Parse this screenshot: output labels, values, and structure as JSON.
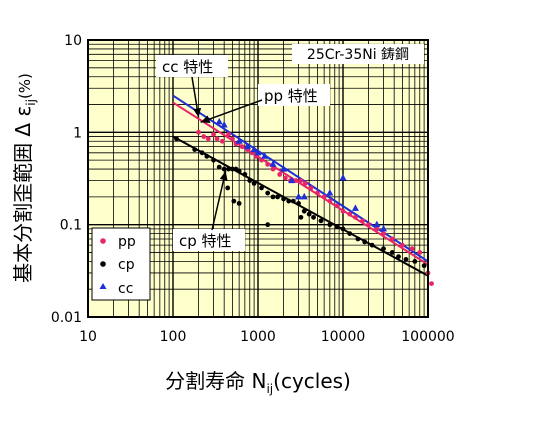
{
  "chart_data": {
    "type": "scatter",
    "title": "",
    "material_label": "25Cr-35Ni 鋳鋼",
    "xlabel_main": "分割寿命 N",
    "xlabel_sub": "ij",
    "xlabel_tail": "(cycles)",
    "ylabel_main": "基本分割歪範囲  Δ ε",
    "ylabel_sub": "ij",
    "ylabel_tail": "(%)",
    "x_scale": "log",
    "y_scale": "log",
    "xlim": [
      10,
      100000
    ],
    "ylim": [
      0.01,
      10
    ],
    "x_ticks": [
      {
        "value": 10,
        "label": "10"
      },
      {
        "value": 100,
        "label": "100"
      },
      {
        "value": 1000,
        "label": "1000"
      },
      {
        "value": 10000,
        "label": "10000"
      },
      {
        "value": 100000,
        "label": "100000"
      }
    ],
    "y_ticks": [
      {
        "value": 0.01,
        "label": "0.01"
      },
      {
        "value": 0.1,
        "label": "0.1"
      },
      {
        "value": 1,
        "label": "1"
      },
      {
        "value": 10,
        "label": "10"
      }
    ],
    "grid": true,
    "legend_position": "bottom-left",
    "series": [
      {
        "name": "pp",
        "color": "#e8246a",
        "marker": "circle",
        "points": [
          [
            200,
            1.0
          ],
          [
            230,
            0.9
          ],
          [
            260,
            0.85
          ],
          [
            300,
            0.95
          ],
          [
            330,
            0.85
          ],
          [
            380,
            0.8
          ],
          [
            450,
            0.95
          ],
          [
            500,
            0.85
          ],
          [
            550,
            0.75
          ],
          [
            650,
            0.7
          ],
          [
            750,
            0.65
          ],
          [
            850,
            0.6
          ],
          [
            950,
            0.55
          ],
          [
            1100,
            0.5
          ],
          [
            1300,
            0.45
          ],
          [
            1500,
            0.4
          ],
          [
            1800,
            0.35
          ],
          [
            2100,
            0.32
          ],
          [
            2400,
            0.3
          ],
          [
            2800,
            0.3
          ],
          [
            3200,
            0.3
          ],
          [
            3600,
            0.28
          ],
          [
            4200,
            0.25
          ],
          [
            5000,
            0.22
          ],
          [
            6000,
            0.2
          ],
          [
            7000,
            0.18
          ],
          [
            8500,
            0.16
          ],
          [
            10000,
            0.14
          ],
          [
            12000,
            0.13
          ],
          [
            14000,
            0.12
          ],
          [
            17000,
            0.11
          ],
          [
            20000,
            0.1
          ],
          [
            25000,
            0.09
          ],
          [
            30000,
            0.08
          ],
          [
            38000,
            0.07
          ],
          [
            50000,
            0.06
          ],
          [
            65000,
            0.055
          ],
          [
            80000,
            0.05
          ],
          [
            100000,
            0.03
          ],
          [
            110000,
            0.023
          ]
        ]
      },
      {
        "name": "cp",
        "color": "#000000",
        "marker": "circle",
        "points": [
          [
            110,
            0.85
          ],
          [
            180,
            0.65
          ],
          [
            220,
            0.6
          ],
          [
            250,
            0.55
          ],
          [
            300,
            0.5
          ],
          [
            350,
            0.42
          ],
          [
            400,
            0.4
          ],
          [
            450,
            0.4
          ],
          [
            500,
            0.4
          ],
          [
            550,
            0.4
          ],
          [
            600,
            0.38
          ],
          [
            700,
            0.35
          ],
          [
            800,
            0.3
          ],
          [
            900,
            0.28
          ],
          [
            1100,
            0.25
          ],
          [
            1300,
            0.22
          ],
          [
            1500,
            0.2
          ],
          [
            1700,
            0.2
          ],
          [
            2000,
            0.19
          ],
          [
            2300,
            0.18
          ],
          [
            2600,
            0.18
          ],
          [
            3000,
            0.17
          ],
          [
            3500,
            0.14
          ],
          [
            3200,
            0.12
          ],
          [
            4000,
            0.13
          ],
          [
            4500,
            0.12
          ],
          [
            5500,
            0.11
          ],
          [
            7000,
            0.1
          ],
          [
            8500,
            0.095
          ],
          [
            10000,
            0.09
          ],
          [
            12000,
            0.08
          ],
          [
            15000,
            0.07
          ],
          [
            18000,
            0.065
          ],
          [
            22000,
            0.06
          ],
          [
            30000,
            0.055
          ],
          [
            38000,
            0.05
          ],
          [
            45000,
            0.045
          ],
          [
            55000,
            0.042
          ],
          [
            70000,
            0.04
          ],
          [
            90000,
            0.036
          ],
          [
            440,
            0.25
          ],
          [
            520,
            0.18
          ],
          [
            600,
            0.17
          ],
          [
            1300,
            0.1
          ]
        ]
      },
      {
        "name": "cc",
        "color": "#1f2fd6",
        "marker": "triangle",
        "points": [
          [
            350,
            1.3
          ],
          [
            400,
            1.2
          ],
          [
            600,
            0.8
          ],
          [
            750,
            0.7
          ],
          [
            900,
            0.65
          ],
          [
            1000,
            0.6
          ],
          [
            1200,
            0.55
          ],
          [
            1500,
            0.45
          ],
          [
            2000,
            0.4
          ],
          [
            2500,
            0.3
          ],
          [
            3000,
            0.2
          ],
          [
            3500,
            0.2
          ],
          [
            7000,
            0.22
          ],
          [
            10000,
            0.32
          ],
          [
            14000,
            0.15
          ],
          [
            25000,
            0.1
          ],
          [
            30000,
            0.09
          ]
        ]
      }
    ],
    "fit_lines": [
      {
        "series": "pp",
        "color": "#e8246a",
        "from": [
          100,
          2.1
        ],
        "to": [
          100000,
          0.037
        ]
      },
      {
        "series": "cc",
        "color": "#1f2fd6",
        "from": [
          100,
          2.5
        ],
        "to": [
          100000,
          0.04
        ]
      },
      {
        "series": "cp",
        "color": "#000000",
        "from": [
          100,
          0.9
        ],
        "to": [
          100000,
          0.028
        ]
      }
    ],
    "annotations": [
      {
        "text": "cc 特性",
        "target": [
          200,
          1.45
        ]
      },
      {
        "text": "pp 特性",
        "target": [
          200,
          1.35
        ]
      },
      {
        "text": "cp 特性",
        "target": [
          440,
          0.4
        ]
      }
    ]
  }
}
